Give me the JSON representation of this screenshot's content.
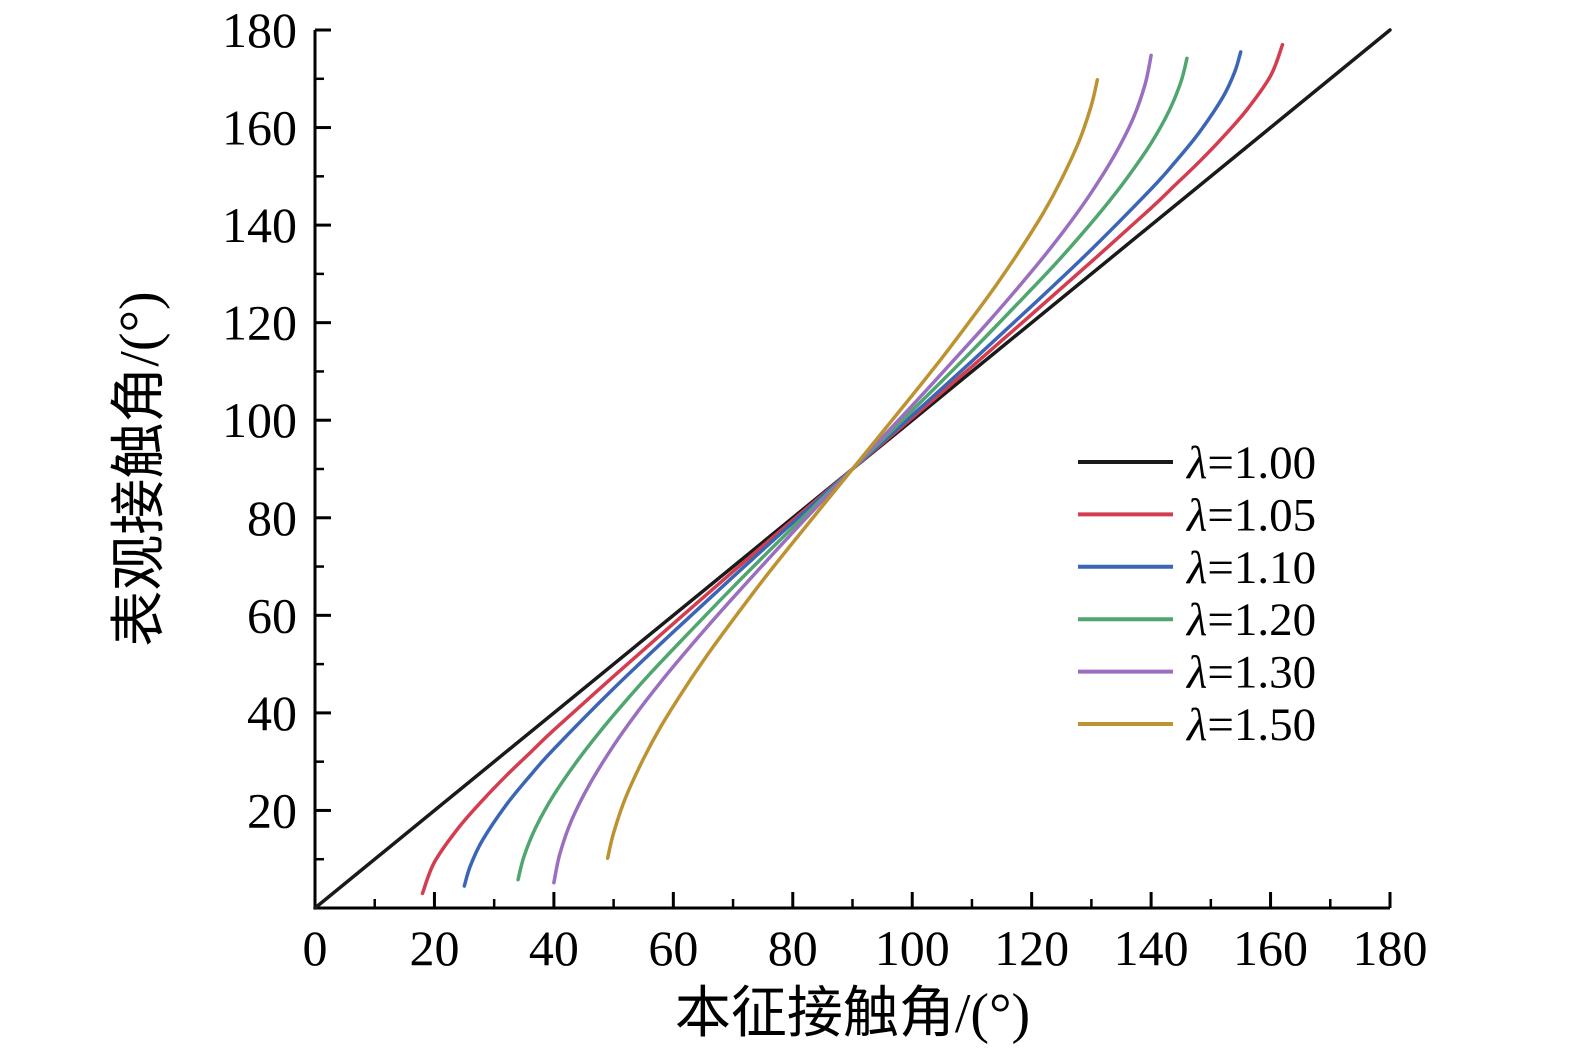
{
  "chart_data": {
    "type": "line",
    "title": "",
    "xlabel": "本征接触角/(°)",
    "ylabel": "表观接触角/(°)",
    "xlim": [
      0,
      180
    ],
    "ylim": [
      0,
      180
    ],
    "x_ticks": [
      0,
      20,
      40,
      60,
      80,
      100,
      120,
      140,
      160,
      180
    ],
    "y_ticks": [
      20,
      40,
      60,
      80,
      100,
      120,
      140,
      160,
      180
    ],
    "grid": false,
    "axis_color": "#000000",
    "legend_position": "right-center",
    "series": [
      {
        "label": "λ=1.00",
        "lambda": 1.0,
        "color": "#1a1a1a",
        "points": [
          [
            0,
            0
          ],
          [
            180,
            180
          ]
        ]
      },
      {
        "label": "λ=1.05",
        "lambda": 1.05,
        "color": "#d43d4f",
        "points": [
          [
            18,
            3
          ],
          [
            20,
            9.4
          ],
          [
            24,
            16.4
          ],
          [
            28,
            22
          ],
          [
            32,
            27.1
          ],
          [
            36,
            31.8
          ],
          [
            40,
            36.5
          ],
          [
            50,
            47.5
          ],
          [
            60,
            58.3
          ],
          [
            70,
            69
          ],
          [
            80,
            79.5
          ],
          [
            90,
            90
          ],
          [
            100,
            100.5
          ],
          [
            110,
            111
          ],
          [
            120,
            121.7
          ],
          [
            130,
            132.5
          ],
          [
            140,
            143.5
          ],
          [
            144,
            148.2
          ],
          [
            148,
            152.9
          ],
          [
            152,
            158
          ],
          [
            156,
            163.6
          ],
          [
            160,
            170.6
          ],
          [
            162,
            177
          ]
        ]
      },
      {
        "label": "λ=1.10",
        "lambda": 1.1,
        "color": "#3c66b5",
        "points": [
          [
            25,
            4.5
          ],
          [
            26,
            8.6
          ],
          [
            28,
            13.8
          ],
          [
            32,
            21.1
          ],
          [
            36,
            27.1
          ],
          [
            40,
            32.6
          ],
          [
            50,
            45
          ],
          [
            60,
            56.6
          ],
          [
            70,
            67.9
          ],
          [
            80,
            79
          ],
          [
            90,
            90
          ],
          [
            100,
            101
          ],
          [
            110,
            112.1
          ],
          [
            120,
            123.4
          ],
          [
            130,
            135
          ],
          [
            140,
            147.4
          ],
          [
            144,
            152.9
          ],
          [
            148,
            158.9
          ],
          [
            152,
            166.2
          ],
          [
            154,
            171.4
          ],
          [
            155,
            175.5
          ]
        ]
      },
      {
        "label": "λ=1.20",
        "lambda": 1.2,
        "color": "#4fa66f",
        "points": [
          [
            34,
            5.8
          ],
          [
            35,
            10.6
          ],
          [
            37,
            16.6
          ],
          [
            40,
            23.2
          ],
          [
            44,
            30.3
          ],
          [
            48,
            36.6
          ],
          [
            52,
            42.4
          ],
          [
            56,
            47.9
          ],
          [
            60,
            53.1
          ],
          [
            70,
            65.8
          ],
          [
            80,
            78
          ],
          [
            90,
            90
          ],
          [
            100,
            102
          ],
          [
            110,
            114.2
          ],
          [
            120,
            126.9
          ],
          [
            124,
            132.1
          ],
          [
            128,
            137.6
          ],
          [
            132,
            143.4
          ],
          [
            136,
            149.7
          ],
          [
            140,
            156.8
          ],
          [
            143,
            163.4
          ],
          [
            145,
            169.4
          ],
          [
            146,
            174.2
          ]
        ]
      },
      {
        "label": "λ=1.30",
        "lambda": 1.3,
        "color": "#9a6fc0",
        "points": [
          [
            40,
            5.2
          ],
          [
            41,
            11.1
          ],
          [
            43,
            18.1
          ],
          [
            46,
            25.4
          ],
          [
            50,
            33.3
          ],
          [
            54,
            40.2
          ],
          [
            58,
            46.5
          ],
          [
            62,
            52.4
          ],
          [
            66,
            58.1
          ],
          [
            70,
            63.6
          ],
          [
            80,
            77
          ],
          [
            90,
            90
          ],
          [
            100,
            103
          ],
          [
            110,
            116.4
          ],
          [
            114,
            121.9
          ],
          [
            118,
            127.6
          ],
          [
            122,
            133.5
          ],
          [
            126,
            139.8
          ],
          [
            130,
            146.7
          ],
          [
            134,
            154.6
          ],
          [
            137,
            161.9
          ],
          [
            139,
            168.9
          ],
          [
            140,
            174.8
          ]
        ]
      },
      {
        "label": "λ=1.50",
        "lambda": 1.5,
        "color": "#bd9331",
        "points": [
          [
            49,
            10.2
          ],
          [
            50,
            15.4
          ],
          [
            52,
            22.6
          ],
          [
            55,
            30.6
          ],
          [
            58,
            37.4
          ],
          [
            62,
            45.2
          ],
          [
            66,
            52.4
          ],
          [
            70,
            59.1
          ],
          [
            75,
            67.2
          ],
          [
            80,
            74.9
          ],
          [
            90,
            90
          ],
          [
            100,
            105.1
          ],
          [
            105,
            112.8
          ],
          [
            110,
            120.9
          ],
          [
            114,
            127.6
          ],
          [
            118,
            134.8
          ],
          [
            122,
            142.6
          ],
          [
            125,
            149.4
          ],
          [
            128,
            157.4
          ],
          [
            130,
            164.6
          ],
          [
            131,
            169.8
          ]
        ]
      }
    ]
  }
}
